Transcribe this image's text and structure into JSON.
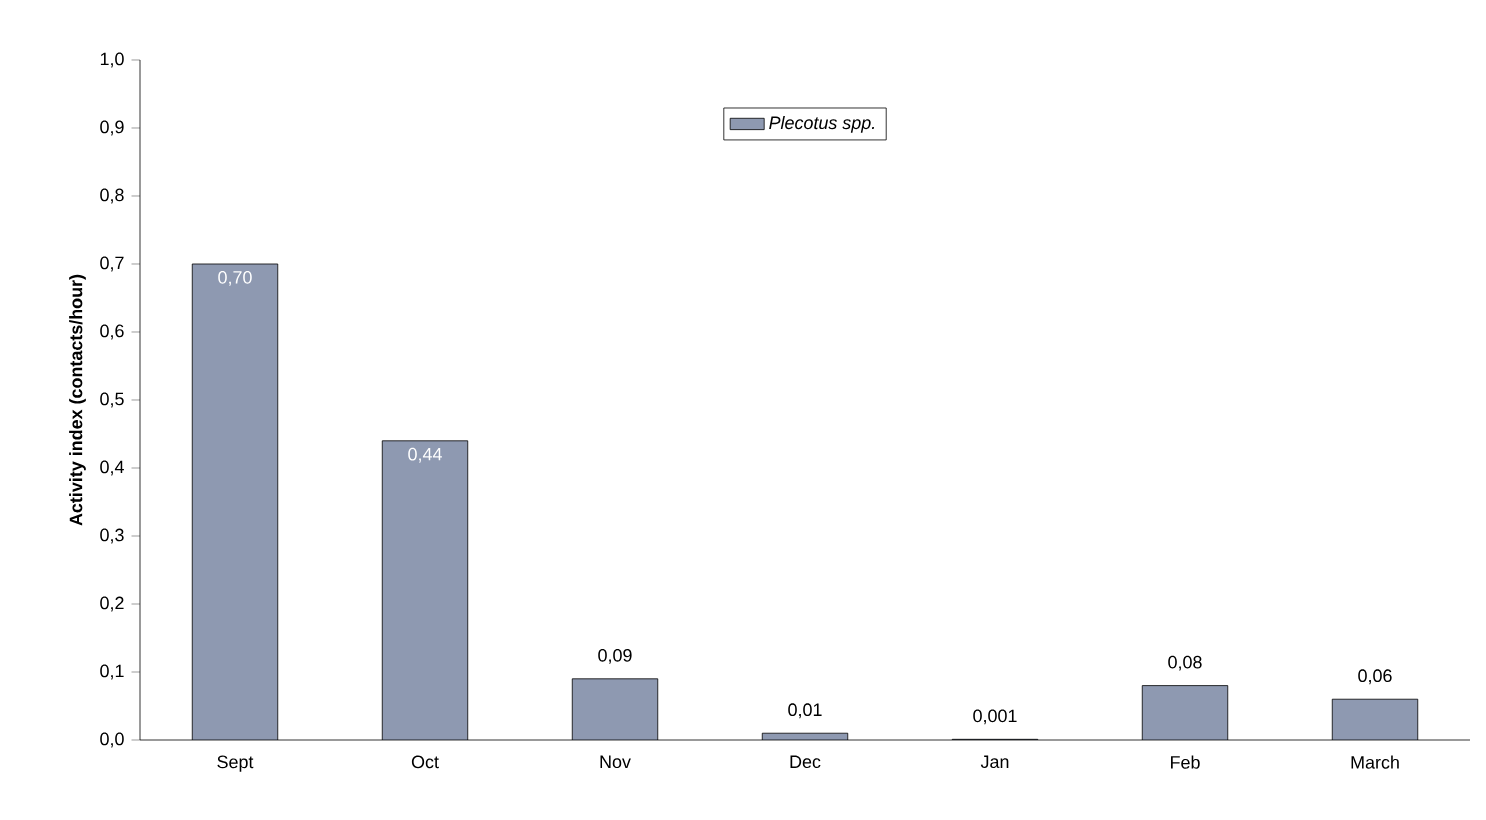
{
  "chart_data": {
    "type": "bar",
    "ylabel": "Activity index (contacts/hour)",
    "categories": [
      "Sept",
      "Oct",
      "Nov",
      "Dec",
      "Jan",
      "Feb",
      "March"
    ],
    "series": [
      {
        "name": "Plecotus spp.",
        "color": "#8e99b1",
        "values": [
          0.7,
          0.44,
          0.09,
          0.01,
          0.001,
          0.08,
          0.06
        ],
        "value_labels": [
          "0,70",
          "0,44",
          "0,09",
          "0,01",
          "0,001",
          "0,08",
          "0,06"
        ]
      }
    ],
    "ylim": [
      0,
      1
    ],
    "yticks": [
      {
        "value": 0,
        "label": "0,0"
      },
      {
        "value": 0.1,
        "label": "0,1"
      },
      {
        "value": 0.2,
        "label": "0,2"
      },
      {
        "value": 0.3,
        "label": "0,3"
      },
      {
        "value": 0.4,
        "label": "0,4"
      },
      {
        "value": 0.5,
        "label": "0,5"
      },
      {
        "value": 0.6,
        "label": "0,6"
      },
      {
        "value": 0.7,
        "label": "0,7"
      },
      {
        "value": 0.8,
        "label": "0,8"
      },
      {
        "value": 0.9,
        "label": "0,9"
      },
      {
        "value": 1,
        "label": "1,0"
      }
    ],
    "grid": false,
    "legend": "top"
  }
}
